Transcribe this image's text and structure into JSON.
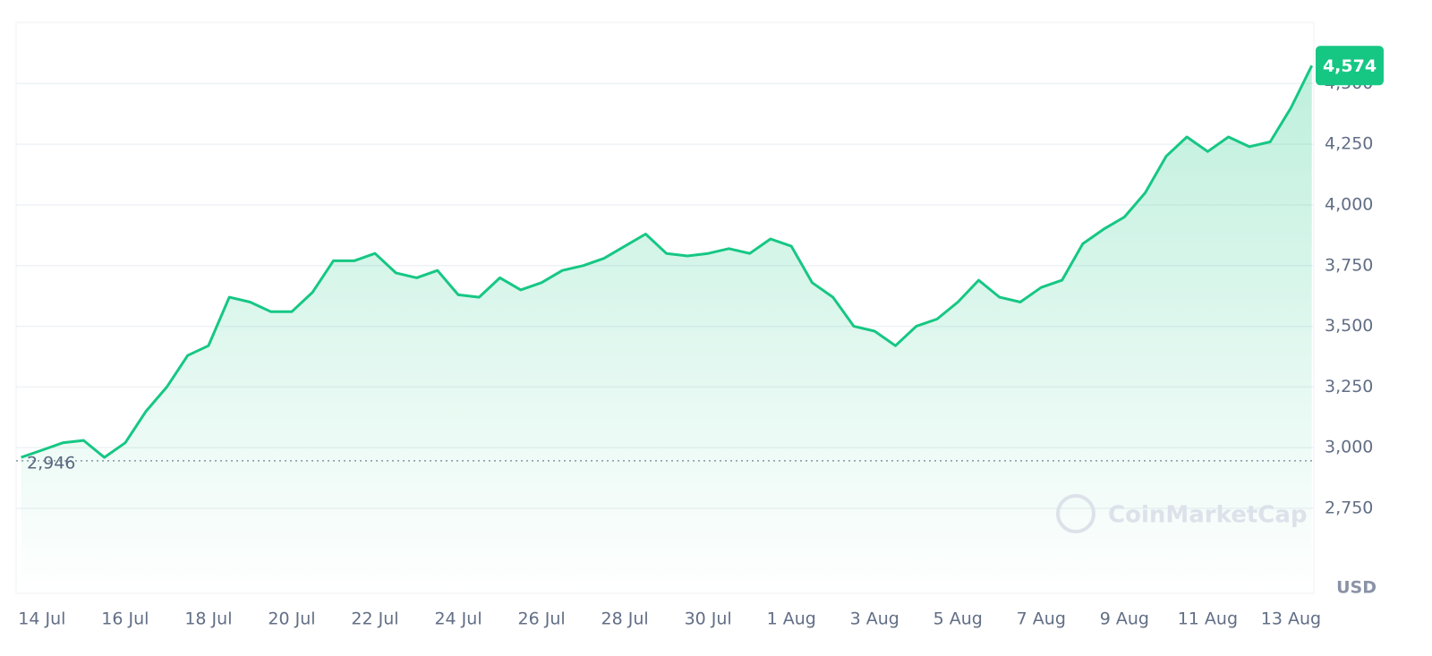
{
  "chart_data": {
    "type": "line",
    "x": [
      -0.5,
      0,
      0.5,
      1,
      1.5,
      2,
      2.5,
      3,
      3.5,
      4,
      4.5,
      5,
      5.5,
      6,
      6.5,
      7,
      7.5,
      8,
      8.5,
      9,
      9.5,
      10,
      10.5,
      11,
      11.5,
      12,
      12.5,
      13,
      13.5,
      14,
      14.5,
      15,
      15.5,
      16,
      16.5,
      17,
      17.5,
      18,
      18.5,
      19,
      19.5,
      20,
      20.5,
      21,
      21.5,
      22,
      22.5,
      23,
      23.5,
      24,
      24.5,
      25,
      25.5,
      26,
      26.5,
      27,
      27.5,
      28,
      28.5,
      29,
      29.5,
      30,
      30.5
    ],
    "series": [
      {
        "color": "#16c784",
        "values": [
          2960,
          2990,
          3020,
          3030,
          2960,
          3020,
          3150,
          3250,
          3380,
          3420,
          3620,
          3600,
          3560,
          3560,
          3640,
          3770,
          3770,
          3800,
          3720,
          3700,
          3730,
          3630,
          3620,
          3700,
          3650,
          3680,
          3730,
          3750,
          3780,
          3830,
          3880,
          3800,
          3790,
          3800,
          3820,
          3800,
          3860,
          3830,
          3680,
          3620,
          3500,
          3480,
          3420,
          3500,
          3530,
          3600,
          3690,
          3620,
          3600,
          3660,
          3690,
          3840,
          3900,
          3950,
          4050,
          4200,
          4280,
          4220,
          4280,
          4240,
          4260,
          4400,
          4574
        ]
      }
    ],
    "xlim": [
      -0.62,
      30.55
    ],
    "xticks": [
      {
        "value": 0,
        "label": "14 Jul"
      },
      {
        "value": 2,
        "label": "16 Jul"
      },
      {
        "value": 4,
        "label": "18 Jul"
      },
      {
        "value": 6,
        "label": "20 Jul"
      },
      {
        "value": 8,
        "label": "22 Jul"
      },
      {
        "value": 10,
        "label": "24 Jul"
      },
      {
        "value": 12,
        "label": "26 Jul"
      },
      {
        "value": 14,
        "label": "28 Jul"
      },
      {
        "value": 16,
        "label": "30 Jul"
      },
      {
        "value": 18,
        "label": "1 Aug"
      },
      {
        "value": 20,
        "label": "3 Aug"
      },
      {
        "value": 22,
        "label": "5 Aug"
      },
      {
        "value": 24,
        "label": "7 Aug"
      },
      {
        "value": 26,
        "label": "9 Aug"
      },
      {
        "value": 28,
        "label": "11 Aug"
      },
      {
        "value": 30,
        "label": "13 Aug"
      }
    ],
    "ylim": [
      2400,
      4752
    ],
    "yticks": [
      {
        "value": 2750,
        "label": "2,750"
      },
      {
        "value": 3000,
        "label": "3,000"
      },
      {
        "value": 3250,
        "label": "3,250"
      },
      {
        "value": 3500,
        "label": "3,500"
      },
      {
        "value": 3750,
        "label": "3,750"
      },
      {
        "value": 4000,
        "label": "4,000"
      },
      {
        "value": 4250,
        "label": "4,250"
      },
      {
        "value": 4500,
        "label": "4,500"
      }
    ],
    "grid": true,
    "start_price": {
      "value": 2946,
      "label": "2,946"
    },
    "current_price": {
      "value": 4574,
      "label": "4,574"
    },
    "unit_label": "USD",
    "watermark": "CoinMarketCap"
  }
}
